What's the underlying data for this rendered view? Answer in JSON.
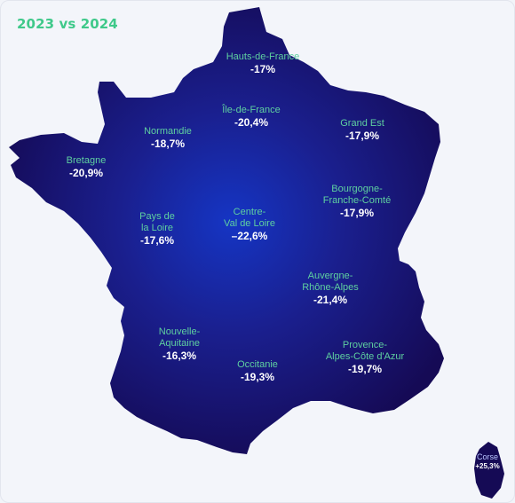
{
  "title": "2023 vs 2024",
  "colors": {
    "title": "#3fc98a",
    "region_name": "#5fd0a0",
    "value": "#ffffff",
    "map_center": "#1535c4",
    "map_edge": "#150a55",
    "background": "#f2f4f9"
  },
  "regions": [
    {
      "id": "hauts-de-france",
      "name": [
        "Hauts-de-France"
      ],
      "value": "-17%"
    },
    {
      "id": "ile-de-france",
      "name": [
        "Île-de-France"
      ],
      "value": "-20,4%"
    },
    {
      "id": "grand-est",
      "name": [
        "Grand Est"
      ],
      "value": "-17,9%"
    },
    {
      "id": "normandie",
      "name": [
        "Normandie"
      ],
      "value": "-18,7%"
    },
    {
      "id": "bretagne",
      "name": [
        "Bretagne"
      ],
      "value": "-20,9%"
    },
    {
      "id": "bourgogne-franche-comte",
      "name": [
        "Bourgogne-",
        "Franche-Comté"
      ],
      "value": "-17,9%"
    },
    {
      "id": "pays-de-la-loire",
      "name": [
        "Pays de",
        "la Loire"
      ],
      "value": "-17,6%"
    },
    {
      "id": "centre-val-de-loire",
      "name": [
        "Centre-",
        "Val de Loire"
      ],
      "value": "–22,6%"
    },
    {
      "id": "auvergne-rhone-alpes",
      "name": [
        "Auvergne-",
        "Rhône-Alpes"
      ],
      "value": "-21,4%"
    },
    {
      "id": "nouvelle-aquitaine",
      "name": [
        "Nouvelle-",
        "Aquitaine"
      ],
      "value": "-16,3%"
    },
    {
      "id": "occitanie",
      "name": [
        "Occitanie"
      ],
      "value": "-19,3%"
    },
    {
      "id": "provence-alpes-cote-dazur",
      "name": [
        "Provence-",
        "Alpes-Côte d'Azur"
      ],
      "value": "-19,7%"
    },
    {
      "id": "corse",
      "name": [
        "Corse"
      ],
      "value": "+25,3%"
    }
  ]
}
